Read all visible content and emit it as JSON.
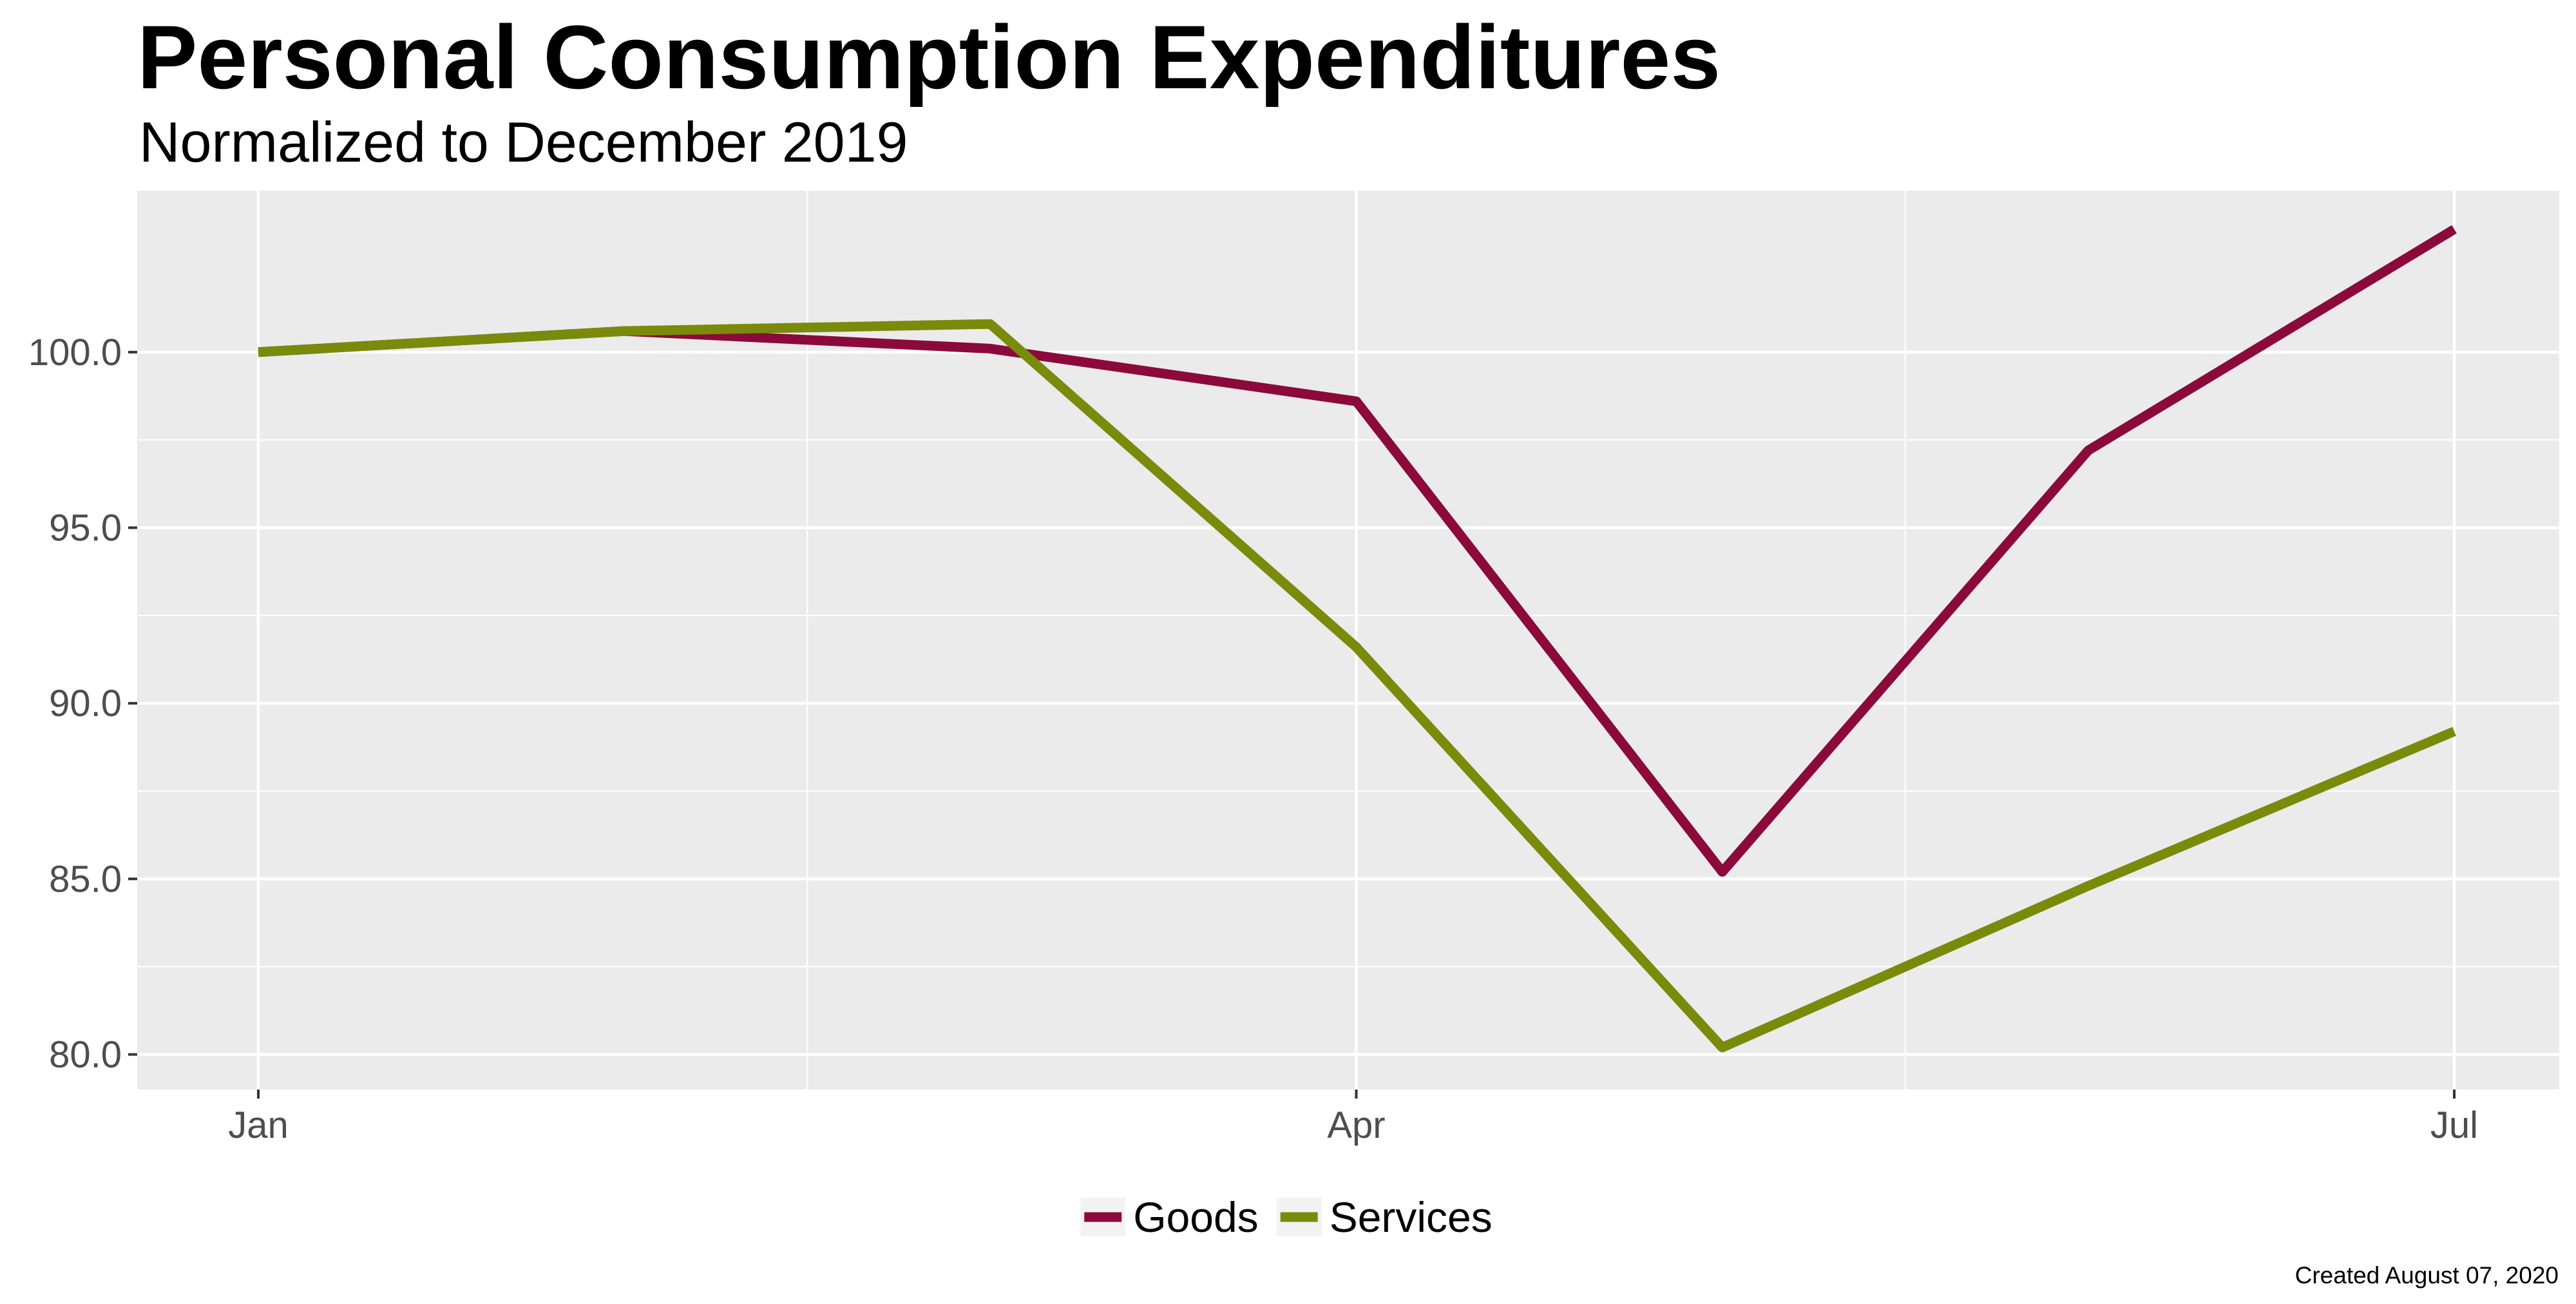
{
  "title": "Personal Consumption Expenditures",
  "subtitle": "Normalized to December 2019",
  "caption": "Created August 07, 2020",
  "chart_data": {
    "type": "line",
    "title": "Personal Consumption Expenditures",
    "subtitle": "Normalized to December 2019",
    "xlabel": "",
    "ylabel": "",
    "x": [
      "2020-01",
      "2020-02",
      "2020-03",
      "2020-04",
      "2020-05",
      "2020-06",
      "2020-07"
    ],
    "x_ticks": [
      {
        "x": "2020-01",
        "label": "Jan"
      },
      {
        "x": "2020-04",
        "label": "Apr"
      },
      {
        "x": "2020-07",
        "label": "Jul"
      }
    ],
    "y_ticks": [
      {
        "value": 80,
        "label": "80.0"
      },
      {
        "value": 85,
        "label": "85.0"
      },
      {
        "value": 90,
        "label": "90.0"
      },
      {
        "value": 95,
        "label": "95.0"
      },
      {
        "value": 100,
        "label": "100.0"
      }
    ],
    "ylim": [
      79,
      104.6
    ],
    "grid": true,
    "legend_position": "bottom",
    "series": [
      {
        "name": "Goods",
        "color": "#8B0A3B",
        "values": [
          100.0,
          100.6,
          100.1,
          98.6,
          85.2,
          97.2,
          103.5
        ]
      },
      {
        "name": "Services",
        "color": "#7A8A0A",
        "values": [
          100.0,
          100.6,
          100.8,
          91.6,
          80.2,
          84.8,
          89.2
        ]
      }
    ]
  }
}
